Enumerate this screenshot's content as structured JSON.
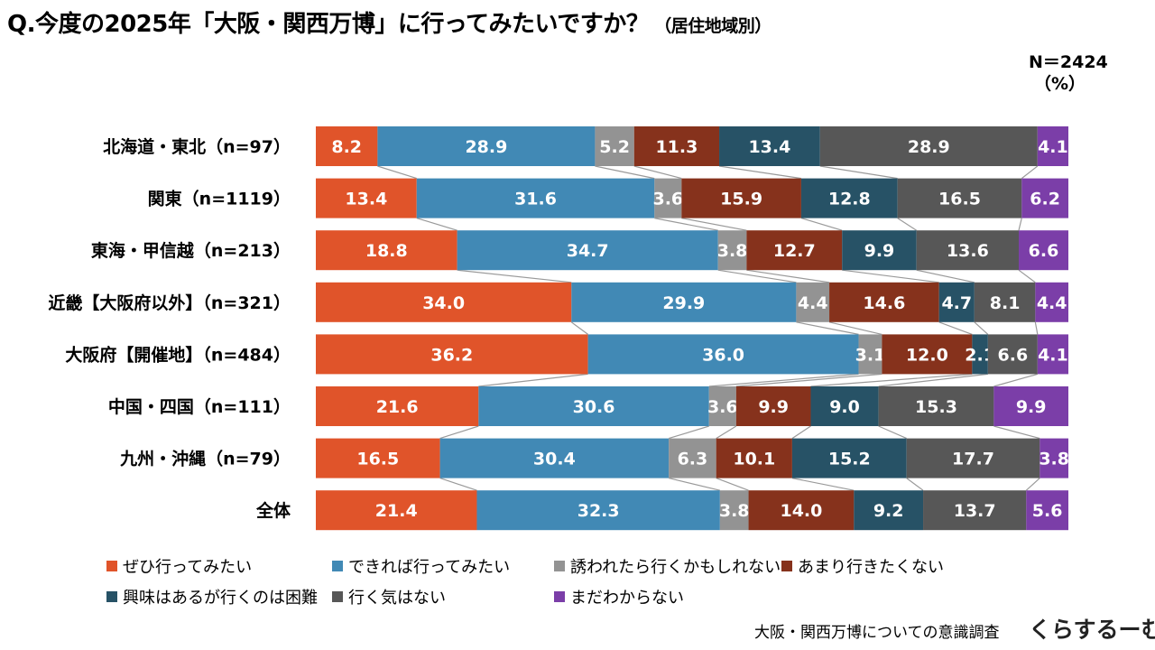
{
  "title": "Q.今度の2025年「大阪・関西万博」に行ってみたいですか？",
  "subtitle": "（居住地域別）",
  "n_label": "N＝2424",
  "unit_label": "（%）",
  "source": "大阪・関西万博についての意識調査",
  "brand": "くらするーむ",
  "chart_data": {
    "type": "bar",
    "orientation": "horizontal",
    "stacked": "percent",
    "title": "Q.今度の2025年「大阪・関西万博」に行ってみたいですか？（居住地域別）",
    "categories": [
      "北海道・東北（n=97）",
      "関東（n=1119）",
      "東海・甲信越（n=213）",
      "近畿【大阪府以外】（n=321）",
      "大阪府【開催地】（n=484）",
      "中国・四国（n=111）",
      "九州・沖縄（n=79）",
      "全体"
    ],
    "series": [
      {
        "name": "ぜひ行ってみたい",
        "color": "#e0542a",
        "values": [
          8.2,
          13.4,
          18.8,
          34.0,
          36.2,
          21.6,
          16.5,
          21.4
        ]
      },
      {
        "name": "できれば行ってみたい",
        "color": "#4189b5",
        "values": [
          28.9,
          31.6,
          34.7,
          29.9,
          36.0,
          30.6,
          30.4,
          32.3
        ]
      },
      {
        "name": "誘われたら行くかもしれない",
        "color": "#939393",
        "values": [
          5.2,
          3.6,
          3.8,
          4.4,
          3.1,
          3.6,
          6.3,
          3.8
        ]
      },
      {
        "name": "あまり行きたくない",
        "color": "#86321c",
        "values": [
          11.3,
          15.9,
          12.7,
          14.6,
          12.0,
          9.9,
          10.1,
          14.0
        ]
      },
      {
        "name": "興味はあるが行くのは困難",
        "color": "#275266",
        "values": [
          13.4,
          12.8,
          9.9,
          4.7,
          2.1,
          9.0,
          15.2,
          9.2
        ]
      },
      {
        "name": "行く気はない",
        "color": "#575757",
        "values": [
          28.9,
          16.5,
          13.6,
          8.1,
          6.6,
          15.3,
          17.7,
          13.7
        ]
      },
      {
        "name": "まだわからない",
        "color": "#7b3ea8",
        "values": [
          4.1,
          6.2,
          6.6,
          4.4,
          4.1,
          9.9,
          3.8,
          5.6
        ]
      }
    ],
    "xlim": [
      0,
      100
    ],
    "xlabel": "",
    "ylabel": "",
    "legend_position": "bottom",
    "connector_lines": true,
    "data_labels": true
  }
}
